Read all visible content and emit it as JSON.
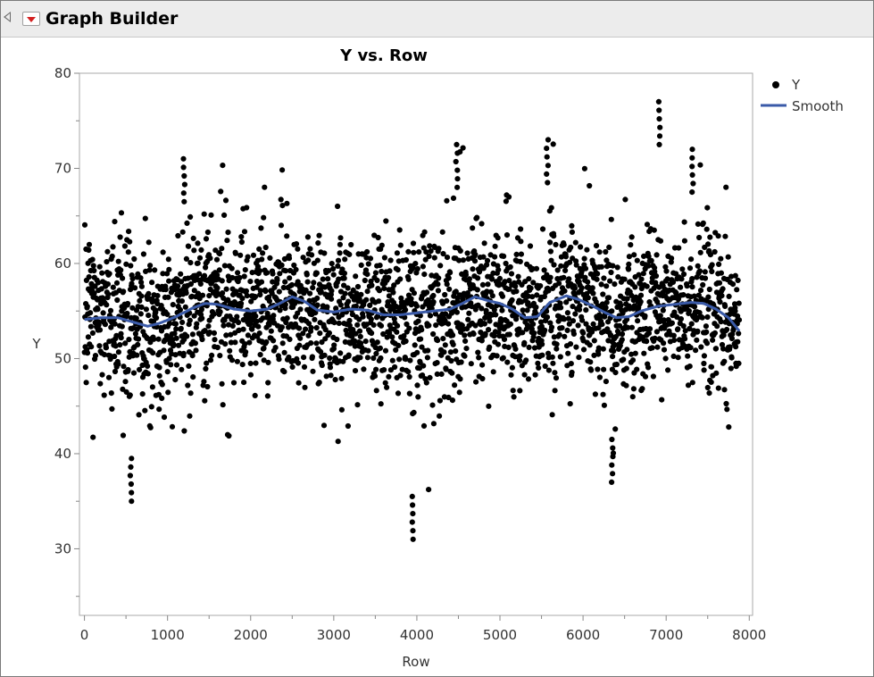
{
  "window": {
    "title": "Graph Builder"
  },
  "colors": {
    "points": "#000000",
    "smooth": "#3a5aa8",
    "menu_arrow": "#d42020"
  },
  "icons": {
    "disclosure": "disclosure-triangle-icon",
    "menu": "red-triangle-menu-icon"
  },
  "chart_data": {
    "type": "scatter",
    "title": "Y vs. Row",
    "xlabel": "Row",
    "ylabel": "Y",
    "xlim": [
      -60,
      8040
    ],
    "ylim": [
      23,
      80
    ],
    "x_ticks": [
      0,
      1000,
      2000,
      3000,
      4000,
      5000,
      6000,
      7000,
      8000
    ],
    "y_ticks": [
      30,
      40,
      50,
      60,
      70,
      80
    ],
    "grid": false,
    "legend": {
      "placement": "top-right outside",
      "entries": [
        {
          "label": "Y",
          "marker": "point"
        },
        {
          "label": "Smooth",
          "marker": "line"
        }
      ]
    },
    "series": [
      {
        "name": "Y",
        "kind": "points",
        "n_points": 7880,
        "x_range": [
          1,
          7880
        ],
        "approx_center": 55,
        "approx_band": [
          47,
          63
        ],
        "notable_extremes": [
          {
            "x": 560,
            "y": 35
          },
          {
            "x": 1200,
            "y": 71
          },
          {
            "x": 3950,
            "y": 31
          },
          {
            "x": 4480,
            "y": 72.5
          },
          {
            "x": 5570,
            "y": 73
          },
          {
            "x": 6920,
            "y": 77
          },
          {
            "x": 7320,
            "y": 72
          },
          {
            "x": 6350,
            "y": 37
          }
        ]
      },
      {
        "name": "Smooth",
        "kind": "line",
        "x": [
          0,
          200,
          400,
          600,
          760,
          900,
          1100,
          1300,
          1450,
          1600,
          1800,
          2000,
          2200,
          2350,
          2500,
          2650,
          2800,
          3000,
          3200,
          3400,
          3600,
          3800,
          4000,
          4200,
          4400,
          4550,
          4700,
          4850,
          5000,
          5150,
          5300,
          5450,
          5600,
          5800,
          5950,
          6100,
          6250,
          6400,
          6550,
          6700,
          6900,
          7100,
          7300,
          7450,
          7600,
          7750,
          7880
        ],
        "y": [
          54.1,
          54.3,
          54.3,
          53.8,
          53.4,
          53.7,
          54.4,
          55.3,
          55.8,
          55.7,
          55.2,
          55.0,
          55.2,
          55.8,
          56.5,
          56.0,
          55.1,
          54.9,
          55.2,
          55.1,
          54.6,
          54.6,
          54.8,
          55.0,
          55.2,
          55.8,
          56.5,
          56.1,
          55.8,
          55.2,
          54.3,
          54.4,
          55.9,
          56.6,
          56.2,
          55.6,
          54.9,
          54.3,
          54.4,
          55.0,
          55.5,
          55.7,
          55.9,
          55.8,
          55.2,
          54.3,
          52.9
        ]
      }
    ]
  }
}
